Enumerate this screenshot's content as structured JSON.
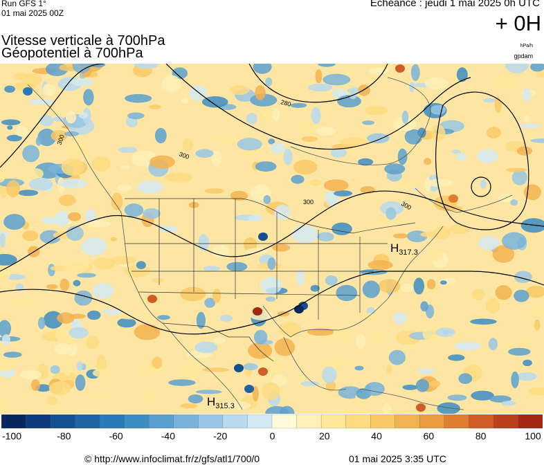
{
  "header": {
    "run_model": "Run GFS 1°",
    "run_date": "01 mai 2025 00Z",
    "echeance": "Echéance : jeudi 1 mai 2025 0h UTC",
    "offset": "+ 0H",
    "title_line1": "Vitesse verticale à 700hPa",
    "title_line2": "Géopotentiel à 700hPa",
    "unit_velocity": "hPa/h",
    "unit_geopotential": "gpdam"
  },
  "map": {
    "contour_labels": [
      "300",
      "280",
      "300",
      "300",
      "300"
    ],
    "high_centers": [
      {
        "letter": "H",
        "value": "317.3"
      },
      {
        "letter": "H",
        "value": "315.3"
      }
    ]
  },
  "color_scale": {
    "ticks": [
      "-100",
      "-80",
      "-60",
      "-40",
      "-20",
      "0",
      "20",
      "40",
      "60",
      "80",
      "100"
    ],
    "min": -100,
    "max": 100,
    "colors": [
      "#08275c",
      "#0e3a7e",
      "#14508f",
      "#1d64a3",
      "#2b79b6",
      "#3d8cc4",
      "#5aa0cf",
      "#79b3d9",
      "#98c6e3",
      "#b8d9ec",
      "#d3e9f1",
      "#fffbd8",
      "#fff0b7",
      "#ffe79a",
      "#fddb80",
      "#f9c966",
      "#f2b24f",
      "#eb9a3e",
      "#e07d2f",
      "#d05e24",
      "#bb3f1a",
      "#a32713"
    ]
  },
  "footer": {
    "url": "© http://www.infoclimat.fr/z/gfs/atl1/700/0",
    "generated": "01 mai 2025  3:35 UTC"
  }
}
